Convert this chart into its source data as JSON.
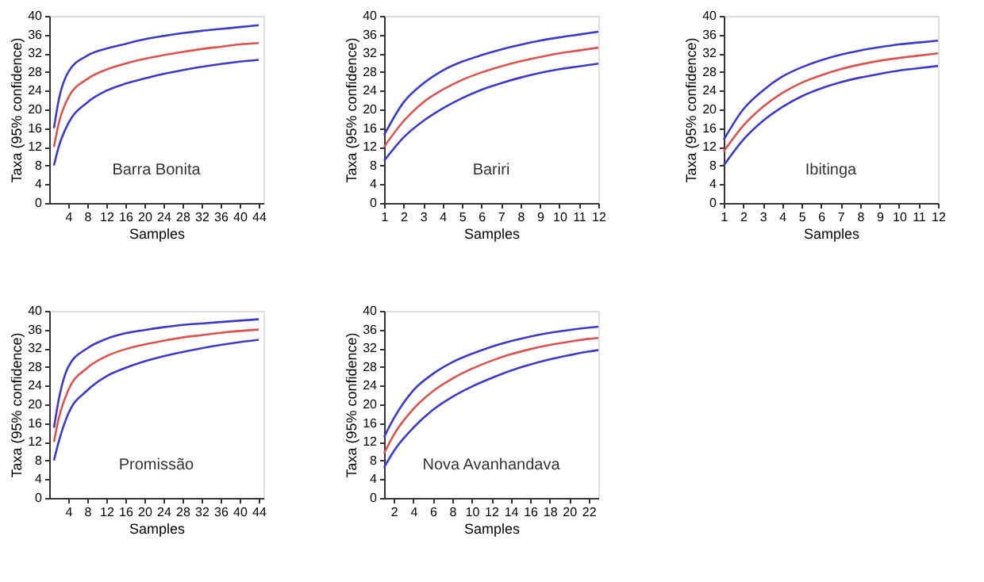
{
  "chart_data": [
    {
      "type": "line",
      "annotations": [
        "Barra Bonita"
      ],
      "xlabel": "Samples",
      "ylabel": "Taxa (95% confidence)",
      "xlim": [
        0,
        45
      ],
      "xticks": [
        4,
        8,
        12,
        16,
        20,
        24,
        28,
        32,
        36,
        40,
        44
      ],
      "ylim": [
        0,
        40
      ],
      "yticks": [
        0,
        4,
        8,
        12,
        16,
        20,
        24,
        28,
        32,
        36,
        40
      ],
      "grid": false,
      "x": [
        1,
        2,
        4,
        8,
        12,
        16,
        20,
        24,
        28,
        32,
        36,
        40,
        44
      ],
      "series": [
        {
          "color": "#3b3bc8",
          "values": [
            16,
            22,
            28,
            31.5,
            33,
            34,
            35,
            35.7,
            36.3,
            36.8,
            37.2,
            37.6,
            38
          ]
        },
        {
          "color": "#d9534f",
          "values": [
            12,
            17,
            22.5,
            26.5,
            28.5,
            29.8,
            30.8,
            31.6,
            32.3,
            32.9,
            33.4,
            33.9,
            34.2
          ]
        },
        {
          "color": "#3b3bc8",
          "values": [
            8,
            12,
            17,
            21.5,
            24,
            25.5,
            26.6,
            27.6,
            28.4,
            29.1,
            29.7,
            30.2,
            30.6
          ]
        }
      ]
    },
    {
      "type": "line",
      "annotations": [
        "Bariri"
      ],
      "xlabel": "Samples",
      "ylabel": "Taxa (95% confidence)",
      "xlim": [
        1,
        12
      ],
      "xticks": [
        1,
        2,
        3,
        4,
        5,
        6,
        7,
        8,
        9,
        10,
        11,
        12
      ],
      "ylim": [
        0,
        40
      ],
      "yticks": [
        0,
        4,
        8,
        12,
        16,
        20,
        24,
        28,
        32,
        36,
        40
      ],
      "grid": false,
      "x": [
        1,
        2,
        3,
        4,
        5,
        6,
        7,
        8,
        9,
        10,
        11,
        12
      ],
      "series": [
        {
          "color": "#3b3bc8",
          "values": [
            14.5,
            21.5,
            25.5,
            28.3,
            30.2,
            31.6,
            32.8,
            33.8,
            34.7,
            35.4,
            36,
            36.6
          ]
        },
        {
          "color": "#d9534f",
          "values": [
            12,
            17.5,
            21.5,
            24.2,
            26.3,
            27.9,
            29.2,
            30.3,
            31.2,
            32,
            32.6,
            33.2
          ]
        },
        {
          "color": "#3b3bc8",
          "values": [
            9,
            14,
            17.5,
            20.2,
            22.4,
            24.2,
            25.6,
            26.8,
            27.8,
            28.6,
            29.2,
            29.8
          ]
        }
      ]
    },
    {
      "type": "line",
      "annotations": [
        "Ibitinga"
      ],
      "xlabel": "Samples",
      "ylabel": "Taxa (95% confidence)",
      "xlim": [
        1,
        12
      ],
      "xticks": [
        1,
        2,
        3,
        4,
        5,
        6,
        7,
        8,
        9,
        10,
        11,
        12
      ],
      "ylim": [
        0,
        40
      ],
      "yticks": [
        0,
        4,
        8,
        12,
        16,
        20,
        24,
        28,
        32,
        36,
        40
      ],
      "grid": false,
      "x": [
        1,
        2,
        3,
        4,
        5,
        6,
        7,
        8,
        9,
        10,
        11,
        12
      ],
      "series": [
        {
          "color": "#3b3bc8",
          "values": [
            13.5,
            20,
            24,
            27,
            29,
            30.5,
            31.7,
            32.6,
            33.3,
            33.9,
            34.3,
            34.7
          ]
        },
        {
          "color": "#d9534f",
          "values": [
            11,
            16.5,
            20.5,
            23.5,
            25.7,
            27.3,
            28.6,
            29.6,
            30.4,
            31,
            31.5,
            32
          ]
        },
        {
          "color": "#3b3bc8",
          "values": [
            8,
            13.5,
            17.5,
            20.5,
            22.8,
            24.5,
            25.8,
            26.8,
            27.6,
            28.3,
            28.8,
            29.3
          ]
        }
      ]
    },
    {
      "type": "line",
      "annotations": [
        "Promissão"
      ],
      "xlabel": "Samples",
      "ylabel": "Taxa (95% confidence)",
      "xlim": [
        0,
        45
      ],
      "xticks": [
        4,
        8,
        12,
        16,
        20,
        24,
        28,
        32,
        36,
        40,
        44
      ],
      "ylim": [
        0,
        40
      ],
      "yticks": [
        0,
        4,
        8,
        12,
        16,
        20,
        24,
        28,
        32,
        36,
        40
      ],
      "grid": false,
      "x": [
        1,
        2,
        4,
        8,
        12,
        16,
        20,
        24,
        28,
        32,
        36,
        40,
        44
      ],
      "series": [
        {
          "color": "#3b3bc8",
          "values": [
            15,
            21,
            28,
            32,
            34,
            35.2,
            35.9,
            36.5,
            37,
            37.3,
            37.6,
            37.9,
            38.2
          ]
        },
        {
          "color": "#d9534f",
          "values": [
            12,
            17,
            23,
            27.8,
            30.3,
            31.8,
            32.8,
            33.6,
            34.3,
            34.8,
            35.3,
            35.7,
            36
          ]
        },
        {
          "color": "#3b3bc8",
          "values": [
            8,
            12,
            18,
            23,
            26,
            27.8,
            29.2,
            30.3,
            31.2,
            32,
            32.7,
            33.3,
            33.8
          ]
        }
      ]
    },
    {
      "type": "line",
      "annotations": [
        "Nova Avanhandava"
      ],
      "xlabel": "Samples",
      "ylabel": "Taxa (95% confidence)",
      "xlim": [
        1,
        23
      ],
      "xticks": [
        2,
        4,
        6,
        8,
        10,
        12,
        14,
        16,
        18,
        20,
        22
      ],
      "ylim": [
        0,
        40
      ],
      "yticks": [
        0,
        4,
        8,
        12,
        16,
        20,
        24,
        28,
        32,
        36,
        40
      ],
      "grid": false,
      "x": [
        1,
        2,
        4,
        6,
        8,
        10,
        12,
        14,
        16,
        18,
        20,
        22,
        23
      ],
      "series": [
        {
          "color": "#3b3bc8",
          "values": [
            13,
            17,
            23,
            26.5,
            29,
            30.8,
            32.3,
            33.5,
            34.5,
            35.3,
            35.9,
            36.4,
            36.6
          ]
        },
        {
          "color": "#d9534f",
          "values": [
            9.5,
            13.5,
            19,
            22.8,
            25.5,
            27.6,
            29.3,
            30.7,
            31.8,
            32.7,
            33.4,
            34,
            34.2
          ]
        },
        {
          "color": "#3b3bc8",
          "values": [
            6.5,
            10,
            15,
            18.8,
            21.6,
            23.8,
            25.6,
            27.2,
            28.5,
            29.6,
            30.5,
            31.3,
            31.6
          ]
        }
      ]
    }
  ]
}
